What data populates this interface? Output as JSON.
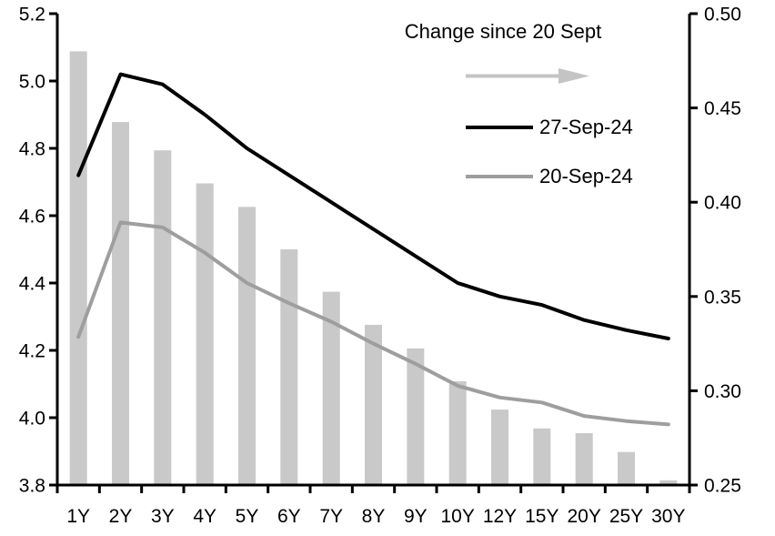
{
  "chart_data": {
    "type": "bar+line",
    "title": "",
    "categories": [
      "1Y",
      "2Y",
      "3Y",
      "4Y",
      "5Y",
      "6Y",
      "7Y",
      "8Y",
      "9Y",
      "10Y",
      "12Y",
      "15Y",
      "20Y",
      "25Y",
      "30Y"
    ],
    "series": [
      {
        "name": "Change since 20 Sept",
        "type": "bar",
        "axis": "right",
        "color": "#c9c9c9",
        "values": [
          0.48,
          0.4425,
          0.4275,
          0.41,
          0.3975,
          0.375,
          0.3525,
          0.335,
          0.3225,
          0.305,
          0.29,
          0.28,
          0.2775,
          0.2675,
          0.2525
        ]
      },
      {
        "name": "27-Sep-24",
        "type": "line",
        "axis": "left",
        "color": "#000000",
        "values": [
          4.72,
          5.02,
          4.99,
          4.9,
          4.8,
          4.72,
          4.64,
          4.56,
          4.48,
          4.4,
          4.36,
          4.335,
          4.29,
          4.26,
          4.235
        ]
      },
      {
        "name": "20-Sep-24",
        "type": "line",
        "axis": "left",
        "color": "#9e9e9e",
        "values": [
          4.24,
          4.58,
          4.565,
          4.49,
          4.4,
          4.34,
          4.285,
          4.22,
          4.16,
          4.095,
          4.06,
          4.045,
          4.005,
          3.99,
          3.98
        ]
      }
    ],
    "left_axis": {
      "min": 3.8,
      "max": 5.2,
      "step": 0.2,
      "tick_labels": [
        "3.8",
        "4.0",
        "4.2",
        "4.4",
        "4.6",
        "4.8",
        "5.0",
        "5.2"
      ]
    },
    "right_axis": {
      "min": 0.25,
      "max": 0.5,
      "step": 0.05,
      "tick_labels": [
        "0.25",
        "0.30",
        "0.35",
        "0.40",
        "0.45",
        "0.50"
      ]
    },
    "grid": false,
    "legend_position": "top-right",
    "legend": {
      "title": "Change since 20 Sept",
      "arrow_icon": "right-arrow",
      "arrow_color": "#c4c4c4",
      "entries": [
        {
          "label": "27-Sep-24",
          "color": "#000000"
        },
        {
          "label": "20-Sep-24",
          "color": "#9e9e9e"
        }
      ]
    }
  }
}
